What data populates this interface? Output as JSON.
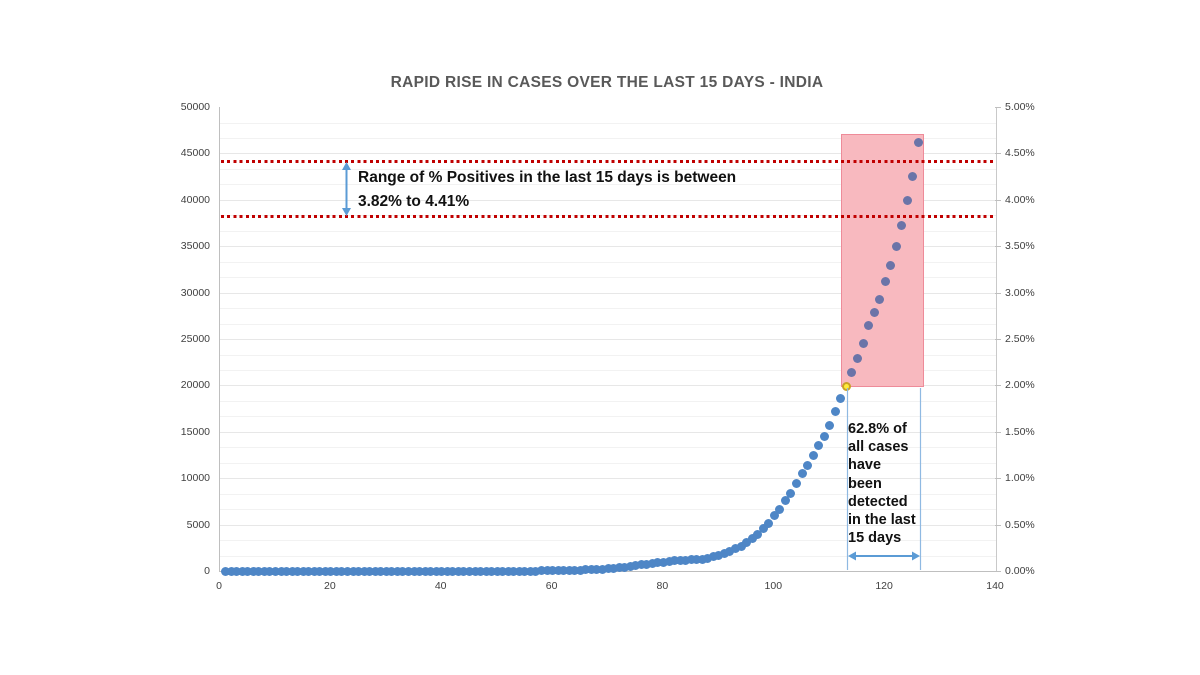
{
  "chart_data": {
    "type": "scatter",
    "title": "RAPID RISE IN CASES OVER THE LAST 15 DAYS - INDIA",
    "grid": true,
    "legend": "none",
    "x_axis": {
      "min": 0,
      "max": 140,
      "ticks": [
        0,
        20,
        40,
        60,
        80,
        100,
        120,
        140
      ]
    },
    "y_axis_left": {
      "min": 0,
      "max": 50000,
      "tick_step": 5000,
      "ticks": [
        50000,
        45000,
        40000,
        35000,
        30000,
        25000,
        20000,
        15000,
        10000,
        5000,
        0
      ]
    },
    "y_axis_right": {
      "min_pct": 0,
      "max_pct": 5,
      "ticks": [
        "5.00%",
        "4.50%",
        "4.00%",
        "3.50%",
        "3.00%",
        "2.50%",
        "2.00%",
        "1.50%",
        "1.00%",
        "0.50%",
        "0.00%"
      ]
    },
    "series": [
      {
        "name": "cumulative-cases-india",
        "color": "#4E86C6",
        "x_start_day": 1,
        "values": [
          0,
          0,
          0,
          0,
          0,
          0,
          0,
          0,
          0,
          0,
          0,
          0,
          0,
          0,
          0,
          0,
          0,
          0,
          0,
          0,
          0,
          0,
          0,
          0,
          0,
          0,
          0,
          0,
          0,
          0,
          1,
          1,
          2,
          3,
          3,
          3,
          3,
          3,
          3,
          3,
          3,
          3,
          3,
          3,
          3,
          3,
          3,
          3,
          3,
          3,
          3,
          3,
          3,
          3,
          3,
          4,
          5,
          6,
          10,
          20,
          30,
          45,
          60,
          75,
          95,
          115,
          140,
          170,
          205,
          250,
          300,
          360,
          430,
          500,
          580,
          660,
          740,
          820,
          900,
          975,
          1040,
          1090,
          1130,
          1170,
          1200,
          1220,
          1250,
          1400,
          1550,
          1720,
          1930,
          2150,
          2470,
          2680,
          3100,
          3540,
          3970,
          4600,
          5150,
          6000,
          6650,
          7620,
          8370,
          9440,
          10500,
          11380,
          12450,
          13500,
          14480,
          15670,
          17170,
          18550,
          19850,
          21350,
          22950,
          24550,
          26500,
          27900,
          29300,
          31200,
          32900,
          35000,
          37200,
          39900,
          42500,
          46200
        ]
      }
    ],
    "highlight_region": {
      "day_start": 112,
      "day_end": 127,
      "value_bottom": 19800,
      "value_top": 47100,
      "fill": "#F8B9BF",
      "border": "#EE8B99",
      "dot_color": "#6B74A8"
    },
    "highlight_point": {
      "day": 113,
      "value": 19850,
      "fill": "#FFEB3B",
      "ring": "#C9A227"
    },
    "reference_lines": [
      {
        "name": "upper-range",
        "pct": 4.41,
        "label": "4.41%",
        "color": "#C00000"
      },
      {
        "name": "lower-range",
        "pct": 3.82,
        "label": "3.82%",
        "color": "#C00000"
      }
    ],
    "annotations": {
      "range_note_line1": "Range of % Positives in the last 15 days is between",
      "range_note_line2": "3.82% to 4.41%",
      "detected_note_lines": [
        "62.8% of",
        "all cases",
        "have",
        "been",
        "detected",
        "in the last",
        "15 days"
      ]
    },
    "arrow_color": "#5B9BD5",
    "bracket_color": "#8FB9E2",
    "title_color": "#595959"
  }
}
